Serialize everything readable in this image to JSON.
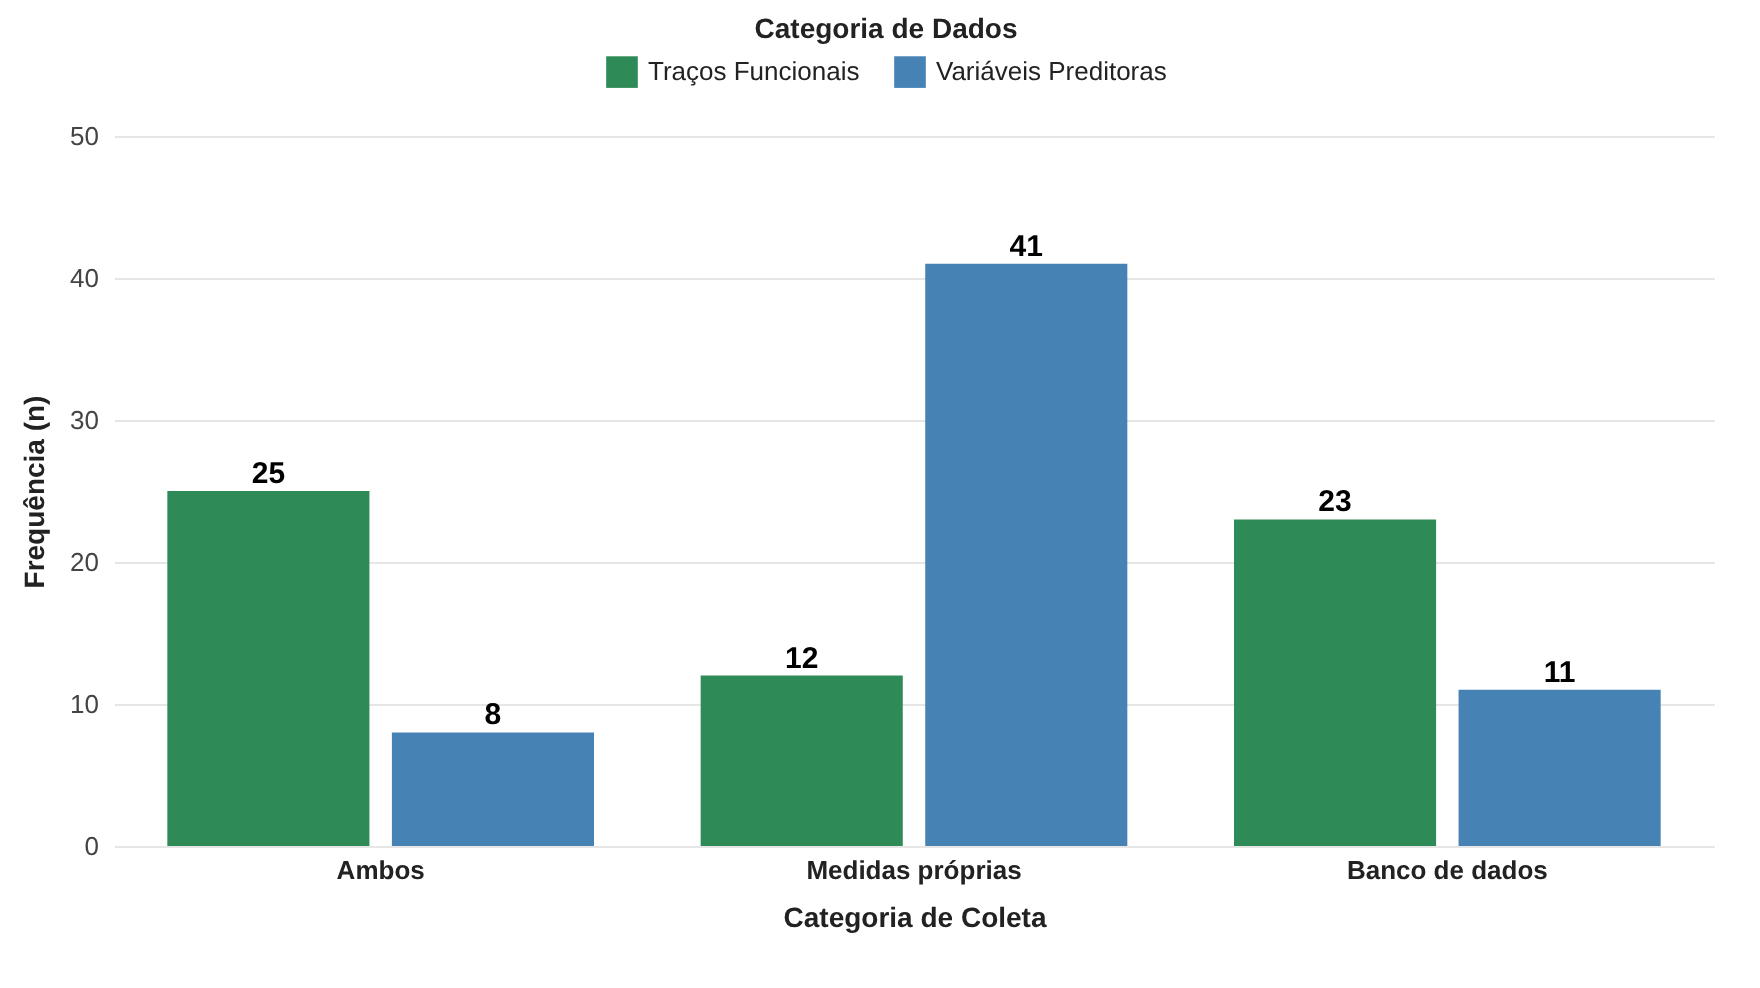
{
  "chart_data": {
    "type": "bar",
    "xlabel": "Categoria de Coleta",
    "ylabel": "Frequência (n)",
    "legend_title": "Categoria de Dados",
    "categories": [
      "Ambos",
      "Medidas próprias",
      "Banco de dados"
    ],
    "series": [
      {
        "name": "Traços Funcionais",
        "color": "#2e8b57",
        "values": [
          25,
          12,
          23
        ]
      },
      {
        "name": "Variáveis Preditoras",
        "color": "#4682b4",
        "values": [
          8,
          41,
          11
        ]
      }
    ],
    "ylim": [
      0,
      50
    ],
    "yticks": [
      0,
      10,
      20,
      30,
      40,
      50
    ],
    "grid": "y",
    "legend": "top",
    "data_labels": true
  }
}
